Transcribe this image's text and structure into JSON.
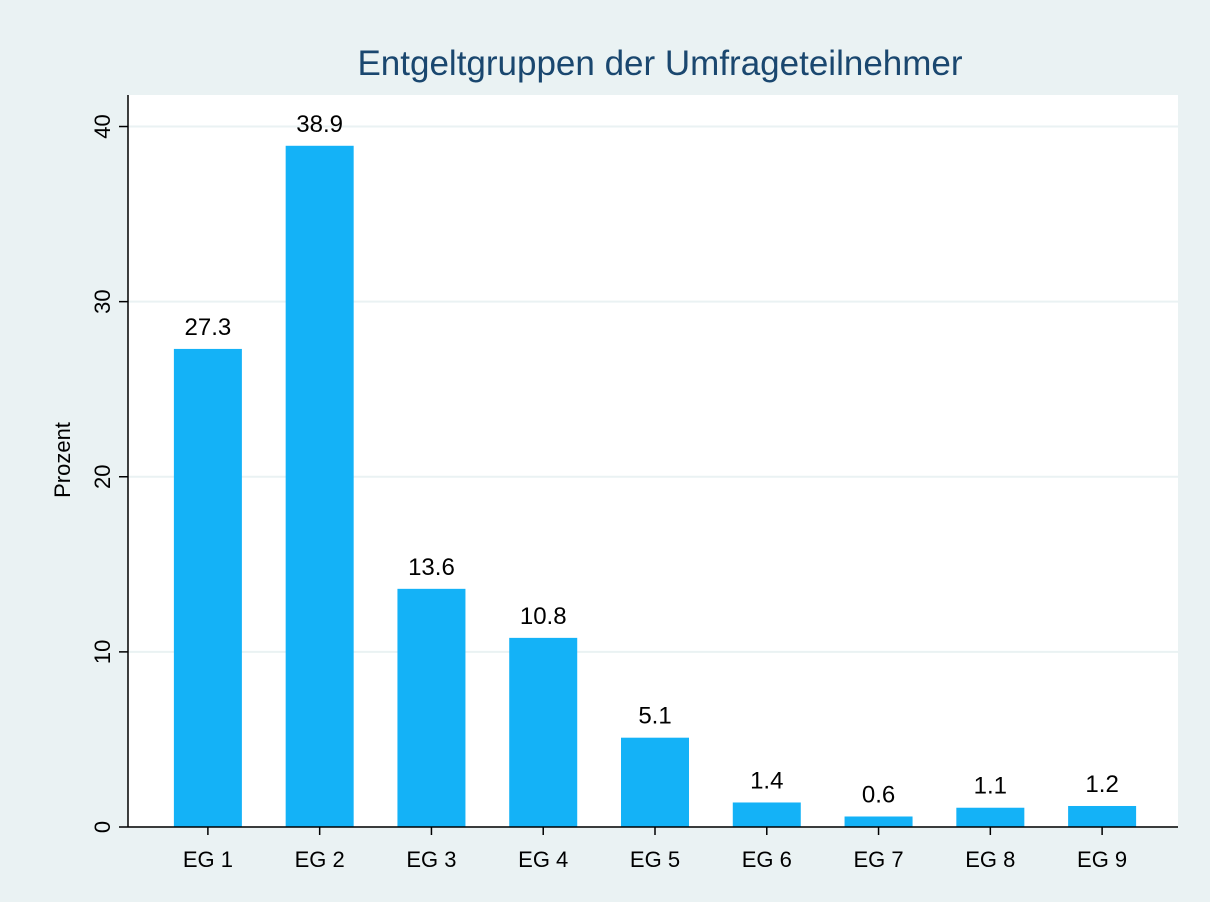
{
  "chart_data": {
    "type": "bar",
    "title": "Entgeltgruppen der Umfrageteilnehmer",
    "y_label": "Prozent",
    "categories": [
      "EG 1",
      "EG 2",
      "EG 3",
      "EG 4",
      "EG 5",
      "EG 6",
      "EG 7",
      "EG 8",
      "EG 9"
    ],
    "values": [
      27.3,
      38.9,
      13.6,
      10.8,
      5.1,
      1.4,
      0.6,
      1.1,
      1.2
    ],
    "color": "#14b2f7",
    "ylim": [
      0,
      41.8
    ],
    "yticks": [
      0,
      10,
      20,
      30,
      40
    ],
    "grid": true
  }
}
